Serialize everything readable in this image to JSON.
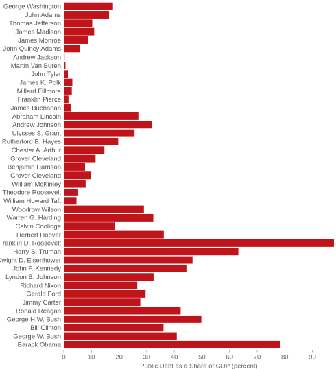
{
  "chart_data": {
    "type": "bar",
    "orientation": "horizontal",
    "categories": [
      "George Washington",
      "John Adams",
      "Thomas Jefferson",
      "James Madison",
      "James Monroe",
      "John Quincy Adams",
      "Andrew Jackson",
      "Martin Van Buren",
      "John Tyler",
      "James K. Polk",
      "Millard Fillmore",
      "Franklin Pierce",
      "James Buchanan",
      "Abraham Lincoln",
      "Andrew Johnson",
      "Ulysses S. Grant",
      "Rutherford B. Hayes",
      "Chester A. Arthur",
      "Grover Cleveland",
      "Benjamin Harrison",
      "Grover Cleveland",
      "William McKinley",
      "Theodore Roosevelt",
      "William Howard Taft",
      "Woodrow Wilson",
      "Warren G. Harding",
      "Calvin Coolidge",
      "Herbert Hoover",
      "Franklin D. Roosevelt",
      "Harry S. Truman",
      "Dwight D. Eisenhower",
      "John F. Kennedy",
      "Lyndon B. Johnson",
      "Richard Nixon",
      "Gerald Ford",
      "Jimmy Carter",
      "Ronald Reagan",
      "George H.W. Bush",
      "Bill Clinton",
      "George W. Bush",
      "Barack Obama"
    ],
    "values": [
      17.8,
      16.4,
      10.3,
      11.0,
      8.9,
      5.9,
      0.3,
      0.6,
      1.5,
      3.1,
      2.9,
      1.7,
      2.5,
      27.0,
      31.9,
      25.6,
      19.7,
      14.7,
      11.5,
      7.7,
      9.9,
      7.9,
      5.2,
      4.6,
      29.0,
      32.4,
      18.4,
      36.2,
      97.8,
      63.2,
      46.6,
      44.4,
      32.5,
      26.6,
      29.6,
      27.7,
      42.3,
      49.8,
      36.1,
      40.9,
      78.4
    ],
    "xlabel": "Public Debt as a Share of GDP (percent)",
    "xlim": [
      0,
      97.8
    ],
    "xticks": [
      0,
      10,
      20,
      30,
      40,
      50,
      60,
      70,
      80,
      90
    ],
    "bar_color": "#c0141b",
    "grid": false,
    "legend": "none"
  }
}
